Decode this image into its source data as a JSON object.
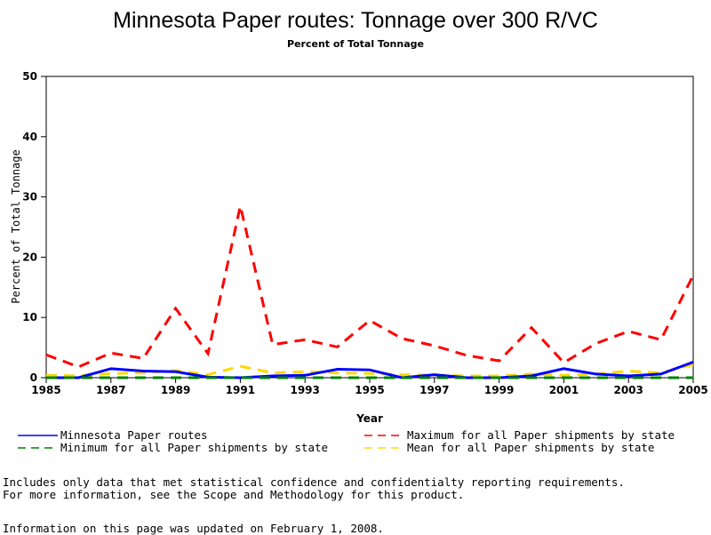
{
  "chart_data": {
    "type": "line",
    "title": "Minnesota Paper routes: Tonnage over 300 R/VC",
    "subtitle": "Percent of Total Tonnage",
    "xlabel": "Year",
    "ylabel": "Percent of Total Tonnage",
    "xlim": [
      1985,
      2005
    ],
    "ylim": [
      0,
      50
    ],
    "xticks": [
      1985,
      1987,
      1989,
      1991,
      1993,
      1995,
      1997,
      1999,
      2001,
      2003,
      2005
    ],
    "yticks": [
      0,
      10,
      20,
      30,
      40,
      50
    ],
    "x": [
      1985,
      1986,
      1987,
      1988,
      1989,
      1990,
      1991,
      1992,
      1993,
      1994,
      1995,
      1996,
      1997,
      1998,
      1999,
      2000,
      2001,
      2002,
      2003,
      2004,
      2005
    ],
    "series": [
      {
        "name": "Minnesota Paper routes",
        "color": "#0000ff",
        "dash": "solid",
        "values": [
          0,
          0,
          1.5,
          1.1,
          1.0,
          0.1,
          0,
          0.3,
          0.4,
          1.4,
          1.3,
          0,
          0.5,
          0,
          0,
          0.3,
          1.5,
          0.6,
          0.3,
          0.6,
          2.6
        ]
      },
      {
        "name": "Maximum for all Paper shipments by state",
        "color": "#ff0000",
        "dash": "dashed",
        "values": [
          3.8,
          1.8,
          4.1,
          3.2,
          11.5,
          4.0,
          28.5,
          5.5,
          6.3,
          5.1,
          9.5,
          6.5,
          5.3,
          3.7,
          2.8,
          8.3,
          2.5,
          5.7,
          7.7,
          6.3,
          17.0
        ]
      },
      {
        "name": "Minimum for all Paper shipments by state",
        "color": "#008000",
        "dash": "dashed",
        "values": [
          0,
          0,
          0,
          0,
          0,
          0,
          0,
          0,
          0,
          0,
          0,
          0,
          0,
          0,
          0,
          0,
          0,
          0,
          0,
          0,
          0
        ]
      },
      {
        "name": "Mean for all Paper shipments by state",
        "color": "#ffd700",
        "dash": "dashed",
        "values": [
          0.4,
          0.3,
          0.7,
          0.8,
          1.2,
          0.5,
          1.9,
          0.8,
          1.0,
          0.8,
          0.7,
          0.5,
          0.4,
          0.3,
          0.3,
          0.6,
          0.4,
          0.6,
          1.1,
          0.8,
          2.2
        ]
      }
    ],
    "legend_position": "bottom",
    "grid": false
  },
  "notes": [
    "Includes only data that met statistical confidence and confidentialty reporting requirements.",
    "For more information, see the Scope and Methodology for this product.",
    "Information on this page was updated on February 1, 2008."
  ]
}
